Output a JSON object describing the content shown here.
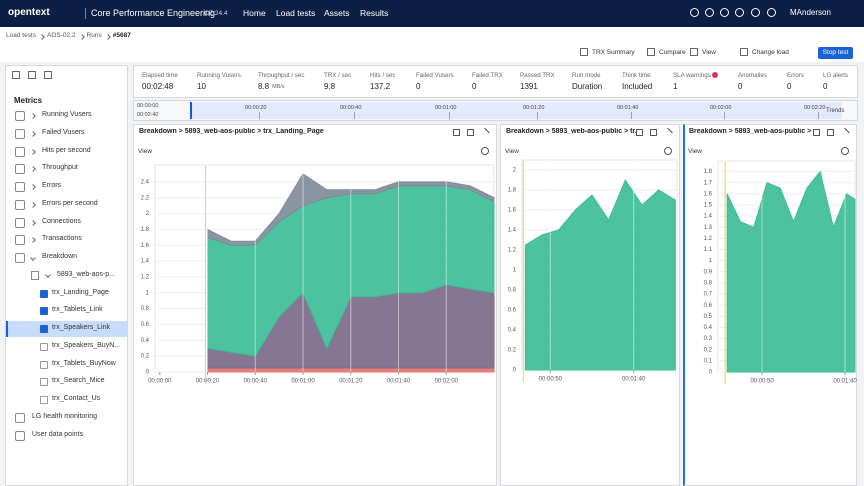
{
  "nav": {
    "logo": "opentext",
    "product": "Core Performance Engineering",
    "version": "CE 24.4",
    "links": [
      "Home",
      "Load tests",
      "Assets",
      "Results"
    ],
    "user": "MAnderson"
  },
  "breadcrumb": [
    "Load tests",
    "AOS-02.2",
    "Runs",
    "#5687"
  ],
  "toolbar": {
    "trx_summary": "TRX Summary",
    "compare": "Compare",
    "view": "View",
    "change_load": "Change load",
    "stop": "Stop test"
  },
  "metrics": {
    "title": "Metrics",
    "items": [
      "Running Vusers",
      "Failed Vusers",
      "Hits per second",
      "Throughput",
      "Errors",
      "Errors per second",
      "Connections",
      "Transactions",
      "Breakdown"
    ],
    "group": "5893_web-aos-p...",
    "transactions": [
      {
        "label": "trx_Landing_Page",
        "checked": true
      },
      {
        "label": "trx_Tablets_Link",
        "checked": true
      },
      {
        "label": "trx_Speakers_Link",
        "checked": true,
        "selected": true
      },
      {
        "label": "trx_Speakers_BuyN...",
        "checked": false
      },
      {
        "label": "trx_Tablets_BuyNow",
        "checked": false
      },
      {
        "label": "trx_Search_Mice",
        "checked": false
      },
      {
        "label": "trx_Contact_Us",
        "checked": false
      }
    ],
    "more": [
      "LG health monitoring",
      "User data points"
    ]
  },
  "stats": [
    {
      "label": "Elapsed time",
      "value": "00:02:48"
    },
    {
      "label": "Running Vusers",
      "value": "10"
    },
    {
      "label": "Throughput / sec",
      "value": "8.8",
      "unit": "MB/s"
    },
    {
      "label": "TRX / sec",
      "value": "9.8"
    },
    {
      "label": "Hits / sec",
      "value": "137.2"
    },
    {
      "label": "Failed Vusers",
      "value": "0"
    },
    {
      "label": "Failed TRX",
      "value": "0"
    },
    {
      "label": "Passed TRX",
      "value": "1391"
    },
    {
      "label": "Run mode",
      "value": "Duration"
    },
    {
      "label": "Think time",
      "value": "Included"
    },
    {
      "label": "SLA warnings",
      "value": "1"
    },
    {
      "label": "Anomalies",
      "value": "0"
    },
    {
      "label": "Errors",
      "value": "0"
    },
    {
      "label": "LG alerts",
      "value": "0"
    }
  ],
  "timeline": {
    "range": [
      "00:00:00",
      "00:02:40"
    ],
    "ticks": [
      "00:00:20",
      "00:00:40",
      "00:01:00",
      "00:01:20",
      "00:01:40",
      "00:02:00",
      "00:02:20"
    ],
    "trends": "Trends"
  },
  "chart_data": [
    {
      "type": "area",
      "stacked": true,
      "title": "Breakdown > 5893_web-aos-public > trx_Landing_Page",
      "x": [
        20,
        30,
        40,
        50,
        60,
        70,
        80,
        90,
        100,
        110,
        120,
        130,
        140
      ],
      "series": [
        {
          "color": "#e57373",
          "values": [
            0.05,
            0.05,
            0.05,
            0.05,
            0.05,
            0.05,
            0.05,
            0.05,
            0.05,
            0.05,
            0.05,
            0.05,
            0.05
          ]
        },
        {
          "color": "#7c6a8a",
          "values": [
            0.25,
            0.2,
            0.15,
            0.65,
            0.95,
            0.25,
            0.9,
            0.9,
            0.95,
            0.95,
            1.05,
            1,
            0.95
          ]
        },
        {
          "color": "#3dbd96",
          "values": [
            1.4,
            1.35,
            1.4,
            1.2,
            1.1,
            1.9,
            1.3,
            1.3,
            1.35,
            1.35,
            1.25,
            1.25,
            1.15
          ]
        },
        {
          "color": "#7f8c99",
          "values": [
            0.1,
            0.05,
            0.05,
            0.1,
            0.4,
            0.1,
            0.05,
            0.05,
            0.05,
            0.05,
            0.05,
            0.05,
            0.05
          ]
        }
      ],
      "xlim": [
        -2,
        140
      ],
      "xticks": [
        {
          "value": 0,
          "label": "00:00:00"
        },
        {
          "value": 20,
          "label": "00:00:20"
        },
        {
          "value": 40,
          "label": "00:00:40"
        },
        {
          "value": 60,
          "label": "00:01:00"
        },
        {
          "value": 80,
          "label": "00:01:20"
        },
        {
          "value": 100,
          "label": "00:01:40"
        },
        {
          "value": 120,
          "label": "00:02:00"
        }
      ],
      "ylim": [
        0,
        2.55
      ],
      "yticks": [
        0,
        0.2,
        0.4,
        0.6,
        0.8,
        1,
        1.2,
        1.4,
        1.6,
        1.8,
        2,
        2.2,
        2.4
      ],
      "grid": true
    },
    {
      "type": "area",
      "stacked": true,
      "title": "Breakdown > 5893_web-aos-public > tr...",
      "x": [
        35,
        45,
        55,
        65,
        75,
        85,
        95,
        105,
        115,
        125
      ],
      "series": [
        {
          "color": "#3dbd96",
          "values": [
            1.25,
            1.35,
            1.4,
            1.6,
            1.75,
            1.5,
            1.9,
            1.65,
            1.8,
            1.7
          ]
        }
      ],
      "xlim": [
        33,
        126
      ],
      "xticks": [
        {
          "value": 50,
          "label": "00:00:50"
        },
        {
          "value": 100,
          "label": "00:01:40"
        }
      ],
      "ylim": [
        0,
        2.05
      ],
      "yticks": [
        0,
        0.2,
        0.4,
        0.6,
        0.8,
        1,
        1.2,
        1.4,
        1.6,
        1.8,
        2
      ],
      "grid": true
    },
    {
      "type": "area",
      "stacked": true,
      "title": "Breakdown > 5893_web-aos-public > ...",
      "x": [
        29,
        37,
        45,
        53,
        61,
        69,
        77,
        85,
        93,
        101,
        106
      ],
      "series": [
        {
          "color": "#3dbd96",
          "values": [
            1.6,
            1.35,
            1.3,
            1.7,
            1.65,
            1.35,
            1.65,
            1.8,
            1.3,
            1.6,
            1.55
          ]
        }
      ],
      "xlim": [
        23.5,
        106
      ],
      "xticks": [
        {
          "value": 50,
          "label": "00:00:50"
        },
        {
          "value": 100,
          "label": "00:01:40"
        }
      ],
      "ylim": [
        0,
        1.85
      ],
      "yticks": [
        0,
        0.1,
        0.2,
        0.3,
        0.4,
        0.5,
        0.6,
        0.7,
        0.8,
        0.9,
        1,
        1.1,
        1.2,
        1.3,
        1.4,
        1.5,
        1.6,
        1.7,
        1.8
      ],
      "grid": true
    }
  ]
}
